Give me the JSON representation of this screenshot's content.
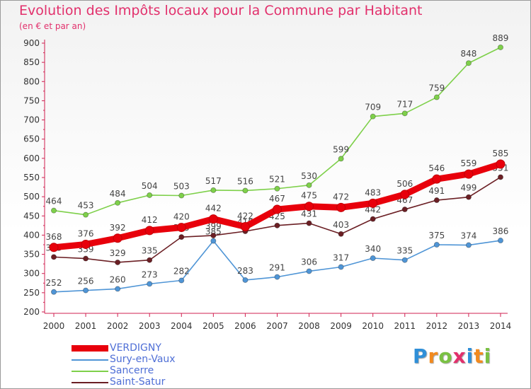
{
  "header": {
    "title": "Evolution des Impôts locaux pour la Commune par Habitant",
    "subtitle": "(en € et par an)"
  },
  "chart_data": {
    "type": "line",
    "title": "Evolution des Impôts locaux pour la Commune par Habitant",
    "subtitle": "(en € et par an)",
    "xlabel": "",
    "ylabel": "",
    "x": [
      "2000",
      "2001",
      "2002",
      "2003",
      "2004",
      "2005",
      "2006",
      "2007",
      "2008",
      "2009",
      "2010",
      "2011",
      "2012",
      "2013",
      "2014"
    ],
    "ylim": [
      200,
      900
    ],
    "yticks": [
      200,
      250,
      300,
      350,
      400,
      450,
      500,
      550,
      600,
      650,
      700,
      750,
      800,
      850,
      900
    ],
    "grid": false,
    "legend_position": "bottom-left",
    "series": [
      {
        "name": "VERDIGNY",
        "color": "#e8000b",
        "values": [
          368,
          376,
          392,
          412,
          420,
          442,
          422,
          467,
          475,
          472,
          483,
          506,
          546,
          559,
          585
        ]
      },
      {
        "name": "Sury-en-Vaux",
        "color": "#4f95d6",
        "values": [
          252,
          256,
          260,
          273,
          282,
          385,
          283,
          291,
          306,
          317,
          340,
          335,
          375,
          374,
          386
        ]
      },
      {
        "name": "Sancerre",
        "color": "#7ed04a",
        "values": [
          464,
          453,
          484,
          504,
          503,
          517,
          516,
          521,
          530,
          599,
          709,
          717,
          759,
          848,
          889
        ]
      },
      {
        "name": "Saint-Satur",
        "color": "#6b1f24",
        "values": [
          343,
          339,
          329,
          335,
          395,
          399,
          410,
          425,
          431,
          403,
          442,
          467,
          491,
          499,
          551
        ]
      }
    ]
  },
  "logo": {
    "letters": [
      "P",
      "r",
      "o",
      "x",
      "i",
      "t",
      "i"
    ],
    "colors": [
      "#2f8fd8",
      "#f28a1e",
      "#7ac143",
      "#e2306c",
      "#2f8fd8",
      "#f28a1e",
      "#7ac143"
    ]
  }
}
